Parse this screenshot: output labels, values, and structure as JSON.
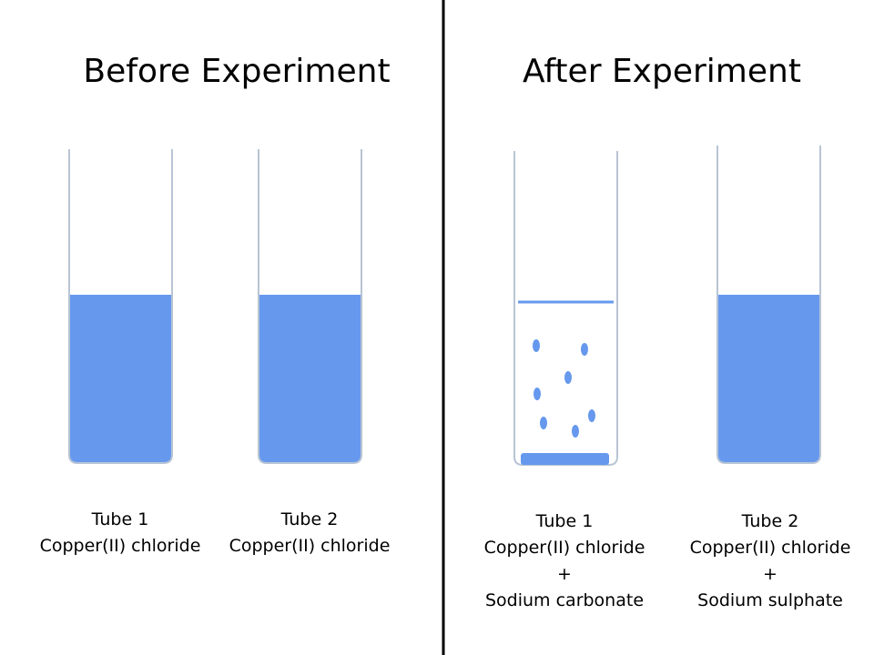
{
  "before": {
    "title": "Before Experiment",
    "tubes": [
      {
        "name": "Tube 1",
        "content": "Copper(II) chloride"
      },
      {
        "name": "Tube 2",
        "content": "Copper(II) chloride"
      }
    ]
  },
  "after": {
    "title": "After Experiment",
    "tubes": [
      {
        "name": "Tube 1",
        "content": "Copper(II) chloride",
        "plus": "+",
        "added": "Sodium carbonate"
      },
      {
        "name": "Tube 2",
        "content": "Copper(II) chloride",
        "plus": "+",
        "added": "Sodium sulphate"
      }
    ]
  }
}
